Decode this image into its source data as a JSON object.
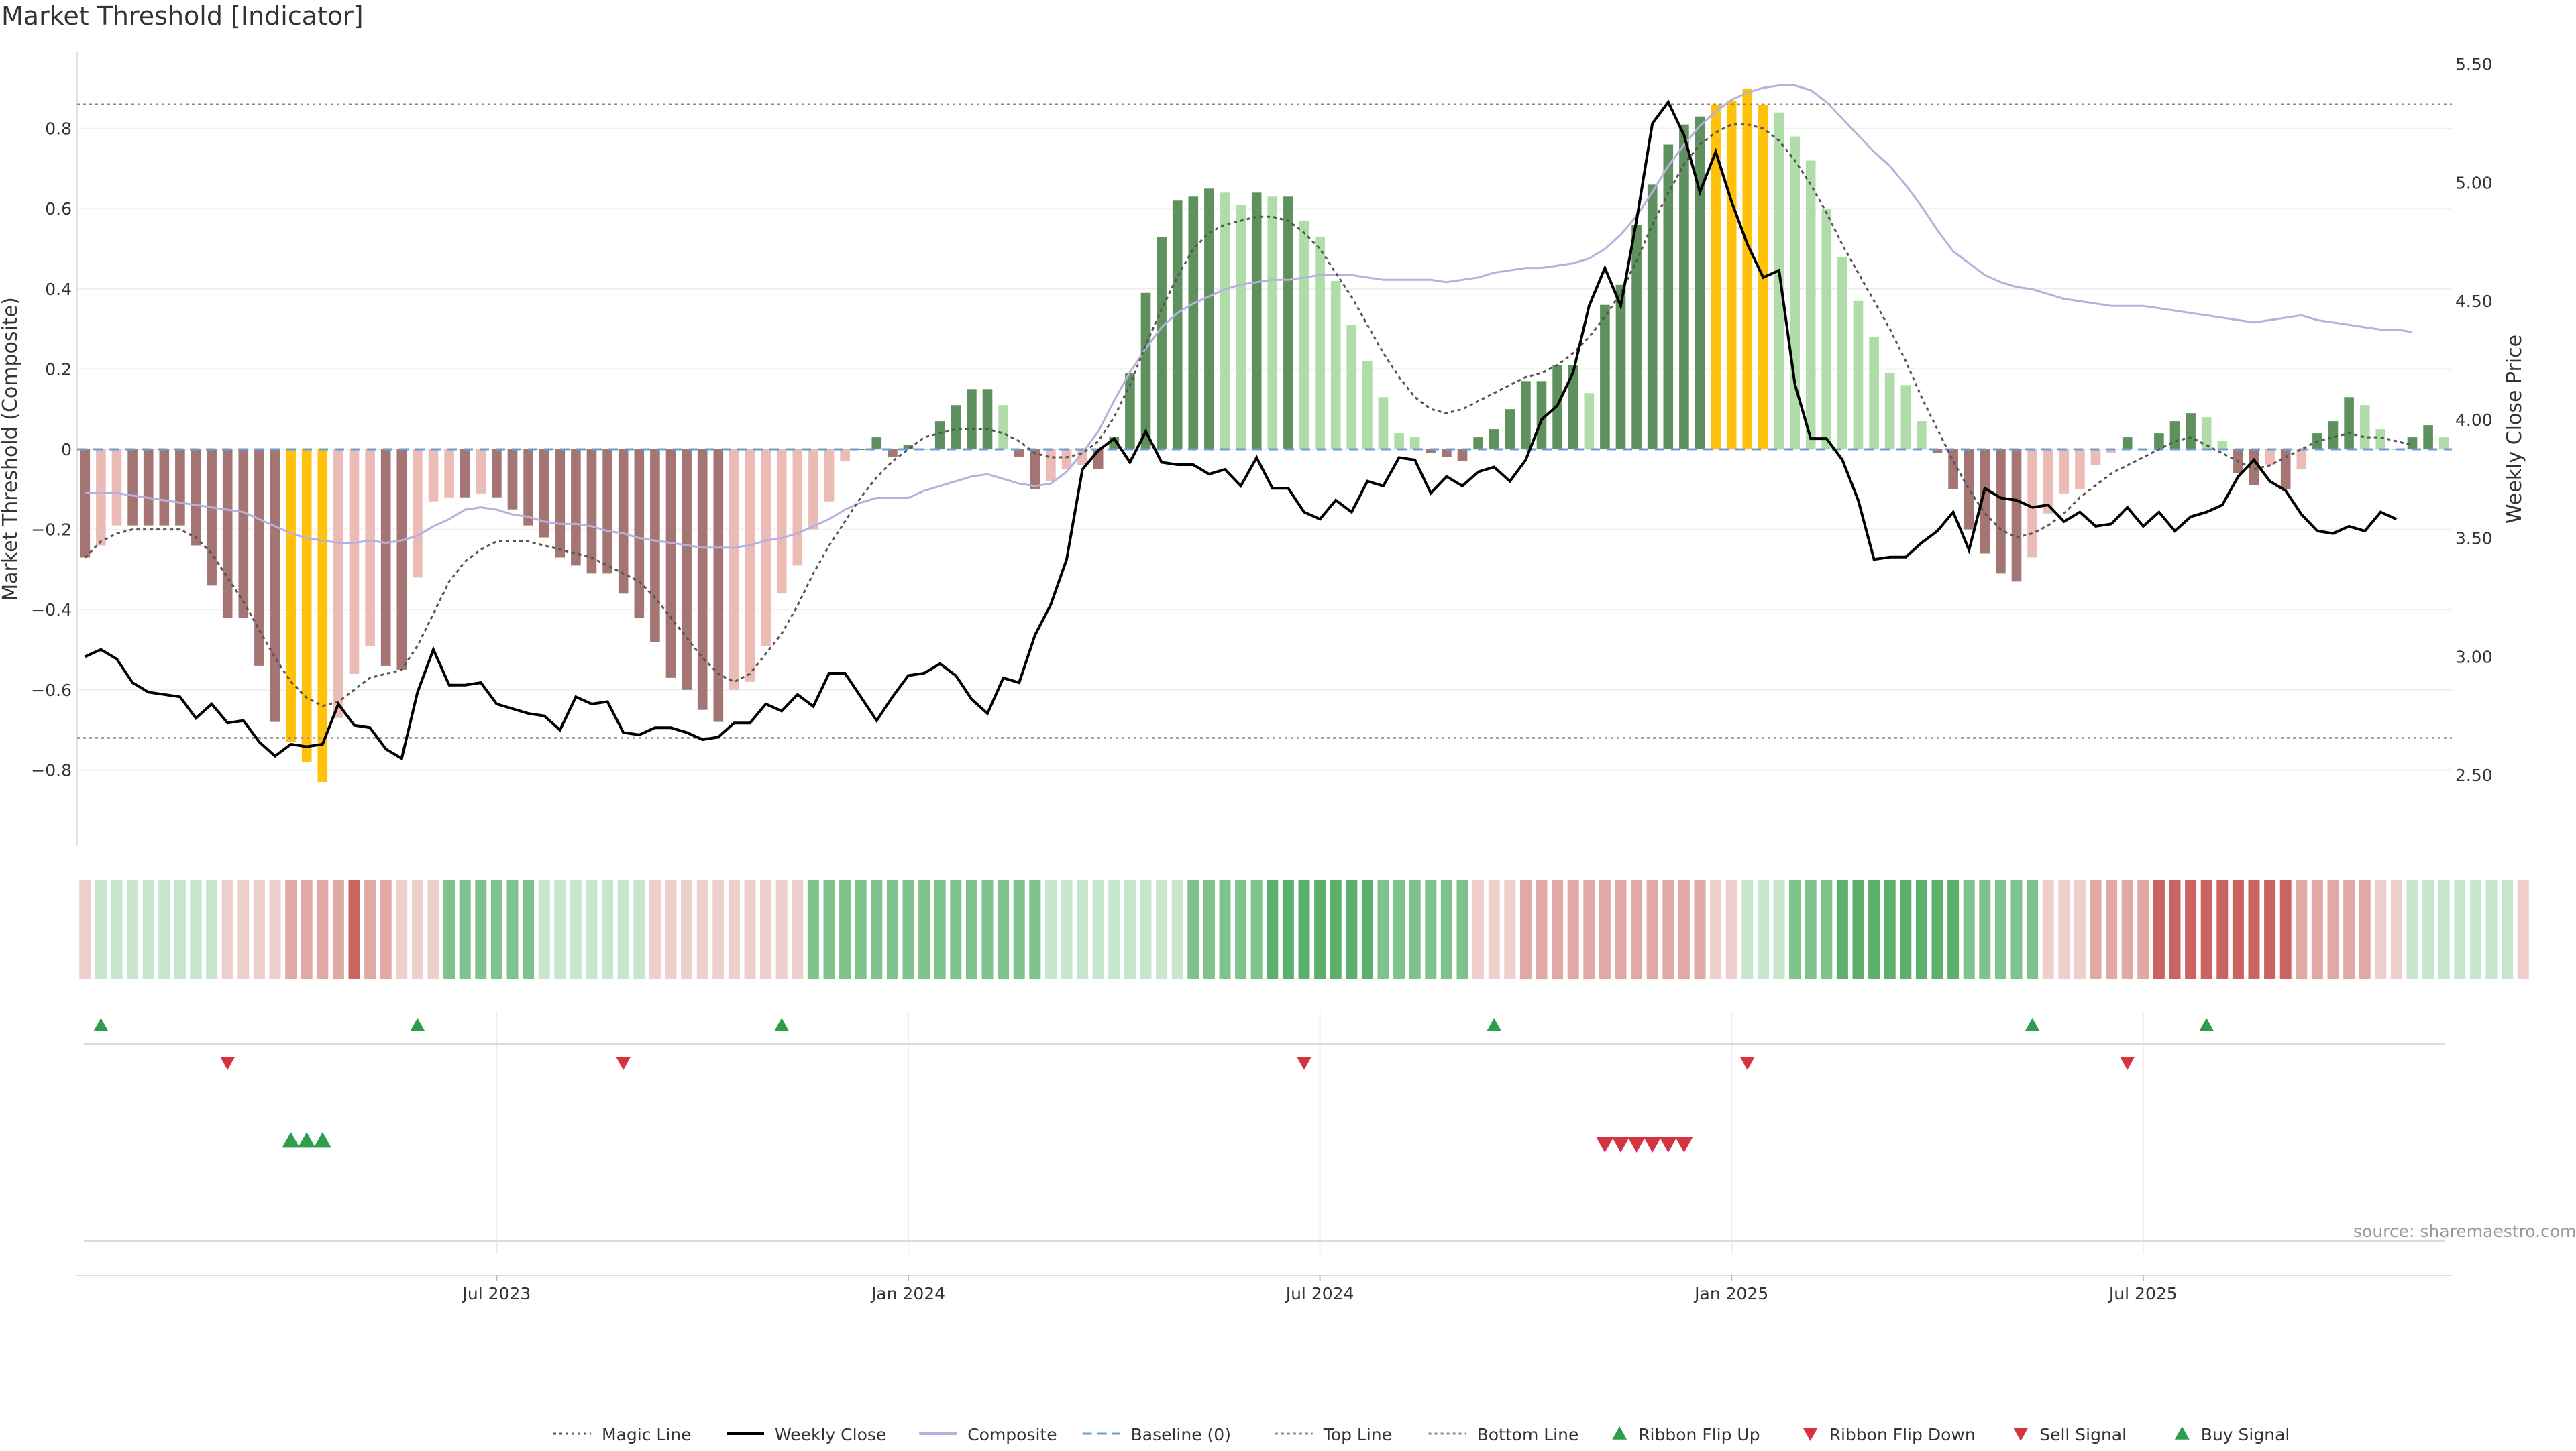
{
  "title": "Market Threshold [Indicator]",
  "source": "source: sharemaestro.com",
  "colors": {
    "positive_strong": "#5e915e",
    "positive_light": "#b0dcaa",
    "negative_strong": "#a47572",
    "negative_light": "#ebbcb6",
    "extreme": "#ffc10a",
    "weekly_close": "#000000",
    "composite": "#b8b0dc",
    "baseline": "#6b9fcc",
    "threshold_line": "#888888",
    "buy": "#2e9e4a",
    "sell": "#d63340"
  },
  "chart_data": {
    "type": "bar",
    "x_axis": {
      "tick_labels": [
        "Jul 2023",
        "Jan 2024",
        "Jul 2024",
        "Jan 2025",
        "Jul 2025"
      ],
      "tick_week_index": [
        26.5,
        52.5,
        78.5,
        104.5,
        130.5
      ],
      "first_week": "2023-01-02",
      "last_week": "2025-11-03"
    },
    "y_left": {
      "label": "Market Threshold (Composite)",
      "ticks": [
        -0.8,
        -0.6,
        -0.4,
        -0.2,
        0,
        0.2,
        0.4,
        0.6,
        0.8
      ],
      "tick_labels": [
        "−0.8",
        "−0.6",
        "−0.4",
        "−0.2",
        "0",
        "0.2",
        "0.4",
        "0.6",
        "0.8"
      ],
      "ylim": [
        -0.99,
        0.99
      ]
    },
    "y_right": {
      "label": "Weekly Close Price",
      "ticks": [
        2.5,
        3.0,
        3.5,
        4.0,
        4.5,
        5.0,
        5.5
      ],
      "tick_labels": [
        "2.50",
        "3.00",
        "3.50",
        "4.00",
        "4.50",
        "5.00",
        "5.50"
      ],
      "ylim": [
        2.2,
        5.55
      ]
    },
    "thresholds": {
      "top": 0.86,
      "bottom": -0.72,
      "baseline": 0
    },
    "composite_bars": [
      -0.27,
      -0.24,
      -0.19,
      -0.19,
      -0.19,
      -0.19,
      -0.19,
      -0.24,
      -0.34,
      -0.42,
      -0.42,
      -0.54,
      -0.68,
      -0.73,
      -0.78,
      -0.83,
      -0.67,
      -0.56,
      -0.49,
      -0.54,
      -0.55,
      -0.32,
      -0.13,
      -0.12,
      -0.12,
      -0.11,
      -0.12,
      -0.15,
      -0.19,
      -0.22,
      -0.27,
      -0.29,
      -0.31,
      -0.31,
      -0.36,
      -0.42,
      -0.48,
      -0.57,
      -0.6,
      -0.65,
      -0.68,
      -0.6,
      -0.58,
      -0.49,
      -0.36,
      -0.29,
      -0.2,
      -0.13,
      -0.03,
      0.0,
      0.03,
      -0.02,
      0.01,
      0.0,
      0.07,
      0.11,
      0.15,
      0.15,
      0.11,
      -0.02,
      -0.1,
      -0.08,
      -0.05,
      -0.04,
      -0.05,
      0.03,
      0.19,
      0.39,
      0.53,
      0.62,
      0.63,
      0.65,
      0.64,
      0.61,
      0.64,
      0.63,
      0.63,
      0.57,
      0.53,
      0.42,
      0.31,
      0.22,
      0.13,
      0.04,
      0.03,
      -0.01,
      -0.02,
      -0.03,
      0.03,
      0.05,
      0.1,
      0.17,
      0.17,
      0.21,
      0.21,
      0.14,
      0.36,
      0.41,
      0.56,
      0.66,
      0.76,
      0.81,
      0.83,
      0.86,
      0.87,
      0.9,
      0.86,
      0.84,
      0.78,
      0.72,
      0.6,
      0.48,
      0.37,
      0.28,
      0.19,
      0.16,
      0.07,
      -0.01,
      -0.1,
      -0.2,
      -0.26,
      -0.31,
      -0.33,
      -0.27,
      -0.16,
      -0.11,
      -0.1,
      -0.04,
      -0.01,
      0.03,
      0.0,
      0.04,
      0.07,
      0.09,
      0.08,
      0.02,
      -0.06,
      -0.09,
      -0.04,
      -0.1,
      -0.05,
      0.04,
      0.07,
      0.13,
      0.11,
      0.05,
      0.0,
      0.03,
      0.06,
      0.03
    ],
    "weekly_close": [
      3.0,
      3.03,
      2.99,
      2.89,
      2.85,
      2.84,
      2.83,
      2.74,
      2.8,
      2.72,
      2.73,
      2.64,
      2.58,
      2.63,
      2.62,
      2.63,
      2.8,
      2.71,
      2.7,
      2.61,
      2.57,
      2.85,
      3.03,
      2.88,
      2.88,
      2.89,
      2.8,
      2.78,
      2.76,
      2.75,
      2.69,
      2.83,
      2.8,
      2.81,
      2.68,
      2.67,
      2.7,
      2.7,
      2.68,
      2.65,
      2.66,
      2.72,
      2.72,
      2.8,
      2.77,
      2.84,
      2.79,
      2.93,
      2.93,
      2.83,
      2.73,
      2.83,
      2.92,
      2.93,
      2.97,
      2.92,
      2.82,
      2.76,
      2.91,
      2.89,
      3.09,
      3.22,
      3.41,
      3.79,
      3.87,
      3.92,
      3.82,
      3.95,
      3.82,
      3.81,
      3.81,
      3.77,
      3.79,
      3.72,
      3.84,
      3.71,
      3.71,
      3.61,
      3.58,
      3.66,
      3.61,
      3.74,
      3.72,
      3.84,
      3.83,
      3.69,
      3.76,
      3.72,
      3.78,
      3.8,
      3.74,
      3.83,
      4.0,
      4.06,
      4.2,
      4.48,
      4.64,
      4.48,
      4.84,
      5.25,
      5.34,
      5.2,
      4.96,
      5.13,
      4.92,
      4.74,
      4.6,
      4.63,
      4.15,
      3.92,
      3.92,
      3.83,
      3.66,
      3.41,
      3.42,
      3.42,
      3.48,
      3.53,
      3.61,
      3.45,
      3.71,
      3.67,
      3.66,
      3.63,
      3.64,
      3.57,
      3.61,
      3.55,
      3.56,
      3.63,
      3.55,
      3.61,
      3.53,
      3.59,
      3.61,
      3.64,
      3.76,
      3.83,
      3.74,
      3.7,
      3.6,
      3.53,
      3.52,
      3.55,
      3.53,
      3.61,
      3.58
    ],
    "composite_line": [
      3.69,
      3.69,
      3.69,
      3.68,
      3.67,
      3.66,
      3.65,
      3.64,
      3.63,
      3.62,
      3.61,
      3.58,
      3.55,
      3.52,
      3.5,
      3.49,
      3.48,
      3.48,
      3.49,
      3.48,
      3.49,
      3.51,
      3.55,
      3.58,
      3.62,
      3.63,
      3.62,
      3.6,
      3.59,
      3.57,
      3.56,
      3.56,
      3.55,
      3.53,
      3.52,
      3.5,
      3.49,
      3.48,
      3.47,
      3.46,
      3.46,
      3.46,
      3.47,
      3.49,
      3.5,
      3.52,
      3.55,
      3.58,
      3.62,
      3.65,
      3.67,
      3.67,
      3.67,
      3.7,
      3.72,
      3.74,
      3.76,
      3.77,
      3.75,
      3.73,
      3.72,
      3.73,
      3.78,
      3.86,
      3.95,
      4.08,
      4.2,
      4.3,
      4.39,
      4.45,
      4.49,
      4.52,
      4.55,
      4.57,
      4.58,
      4.59,
      4.59,
      4.6,
      4.61,
      4.61,
      4.61,
      4.6,
      4.59,
      4.59,
      4.59,
      4.59,
      4.58,
      4.59,
      4.6,
      4.62,
      4.63,
      4.64,
      4.64,
      4.65,
      4.66,
      4.68,
      4.72,
      4.78,
      4.86,
      4.96,
      5.07,
      5.16,
      5.24,
      5.3,
      5.35,
      5.38,
      5.4,
      5.41,
      5.41,
      5.39,
      5.34,
      5.27,
      5.2,
      5.13,
      5.07,
      4.99,
      4.9,
      4.8,
      4.71,
      4.66,
      4.61,
      4.58,
      4.56,
      4.55,
      4.53,
      4.51,
      4.5,
      4.49,
      4.48,
      4.48,
      4.48,
      4.47,
      4.46,
      4.45,
      4.44,
      4.43,
      4.42,
      4.41,
      4.42,
      4.43,
      4.44,
      4.42,
      4.41,
      4.4,
      4.39,
      4.38,
      4.38,
      4.37
    ],
    "magic_line": [
      -0.27,
      -0.23,
      -0.21,
      -0.2,
      -0.2,
      -0.2,
      -0.2,
      -0.22,
      -0.26,
      -0.32,
      -0.38,
      -0.45,
      -0.52,
      -0.58,
      -0.62,
      -0.64,
      -0.63,
      -0.6,
      -0.57,
      -0.56,
      -0.55,
      -0.49,
      -0.41,
      -0.33,
      -0.28,
      -0.25,
      -0.23,
      -0.23,
      -0.23,
      -0.24,
      -0.25,
      -0.26,
      -0.27,
      -0.29,
      -0.31,
      -0.33,
      -0.37,
      -0.42,
      -0.47,
      -0.52,
      -0.56,
      -0.58,
      -0.56,
      -0.51,
      -0.46,
      -0.39,
      -0.31,
      -0.24,
      -0.18,
      -0.12,
      -0.07,
      -0.03,
      0.0,
      0.03,
      0.04,
      0.05,
      0.05,
      0.05,
      0.04,
      0.02,
      -0.01,
      -0.02,
      -0.02,
      -0.01,
      0.02,
      0.08,
      0.16,
      0.26,
      0.35,
      0.43,
      0.5,
      0.54,
      0.56,
      0.57,
      0.58,
      0.58,
      0.57,
      0.54,
      0.5,
      0.44,
      0.38,
      0.31,
      0.24,
      0.18,
      0.13,
      0.1,
      0.09,
      0.1,
      0.12,
      0.14,
      0.16,
      0.18,
      0.19,
      0.21,
      0.24,
      0.28,
      0.33,
      0.39,
      0.47,
      0.56,
      0.64,
      0.71,
      0.76,
      0.79,
      0.81,
      0.81,
      0.8,
      0.77,
      0.72,
      0.66,
      0.59,
      0.51,
      0.44,
      0.37,
      0.3,
      0.22,
      0.13,
      0.05,
      -0.03,
      -0.1,
      -0.16,
      -0.2,
      -0.22,
      -0.21,
      -0.19,
      -0.16,
      -0.12,
      -0.09,
      -0.06,
      -0.04,
      -0.02,
      0.0,
      0.02,
      0.03,
      0.01,
      -0.01,
      -0.03,
      -0.05,
      -0.04,
      -0.02,
      0.0,
      0.02,
      0.03,
      0.04,
      0.03,
      0.03,
      0.02,
      0.01
    ],
    "ribbon_levels": [
      -1,
      1,
      1,
      1,
      1,
      1,
      1,
      1,
      1,
      -1,
      -1,
      -1,
      -1,
      -2,
      -2,
      -2,
      -2,
      -3,
      -2,
      -2,
      -1,
      -1,
      -1,
      2,
      2,
      2,
      2,
      2,
      2,
      1,
      1,
      1,
      1,
      1,
      1,
      1,
      -1,
      -1,
      -1,
      -1,
      -1,
      -1,
      -1,
      -1,
      -1,
      -1,
      2,
      2,
      2,
      2,
      2,
      2,
      2,
      2,
      2,
      2,
      2,
      2,
      2,
      2,
      2,
      1,
      1,
      1,
      1,
      1,
      1,
      1,
      1,
      1,
      2,
      2,
      2,
      2,
      2,
      3,
      3,
      3,
      3,
      3,
      3,
      3,
      2,
      2,
      2,
      2,
      2,
      2,
      -1,
      -1,
      -1,
      -2,
      -2,
      -2,
      -2,
      -2,
      -2,
      -2,
      -2,
      -2,
      -2,
      -2,
      -2,
      -1,
      -1,
      1,
      1,
      1,
      2,
      2,
      2,
      3,
      3,
      3,
      3,
      3,
      3,
      3,
      3,
      2,
      2,
      2,
      2,
      2,
      -1,
      -1,
      -1,
      -2,
      -2,
      -2,
      -2,
      -3,
      -3,
      -3,
      -3,
      -3,
      -3,
      -3,
      -3,
      -3,
      -2,
      -2,
      -2,
      -2,
      -2,
      -1,
      -1,
      1,
      1,
      1,
      1,
      1,
      1,
      1,
      -1
    ],
    "ribbon_flip_up_weeks": [
      1,
      21,
      44,
      89,
      123,
      134
    ],
    "ribbon_flip_down_weeks": [
      9,
      34,
      77,
      105,
      129
    ],
    "buy_signal_weeks": [
      13,
      14,
      15
    ],
    "sell_signal_weeks": [
      96,
      97,
      98,
      99,
      100,
      101
    ],
    "legend": [
      {
        "label": "Magic Line",
        "kind": "dotted",
        "color": "#555555"
      },
      {
        "label": "Weekly Close",
        "kind": "solid",
        "color": "#000000"
      },
      {
        "label": "Composite",
        "kind": "solid",
        "color": "#b8b0dc"
      },
      {
        "label": "Baseline (0)",
        "kind": "dashed",
        "color": "#6b9fcc"
      },
      {
        "label": "Top Line",
        "kind": "dotted",
        "color": "#888888"
      },
      {
        "label": "Bottom Line",
        "kind": "dotted",
        "color": "#888888"
      },
      {
        "label": "Ribbon Flip Up",
        "kind": "tri-up",
        "color": "#2e9e4a"
      },
      {
        "label": "Ribbon Flip Down",
        "kind": "tri-down",
        "color": "#d63340"
      },
      {
        "label": "Sell Signal",
        "kind": "tri-down",
        "color": "#d63340"
      },
      {
        "label": "Buy Signal",
        "kind": "tri-up",
        "color": "#2e9e4a"
      }
    ]
  }
}
